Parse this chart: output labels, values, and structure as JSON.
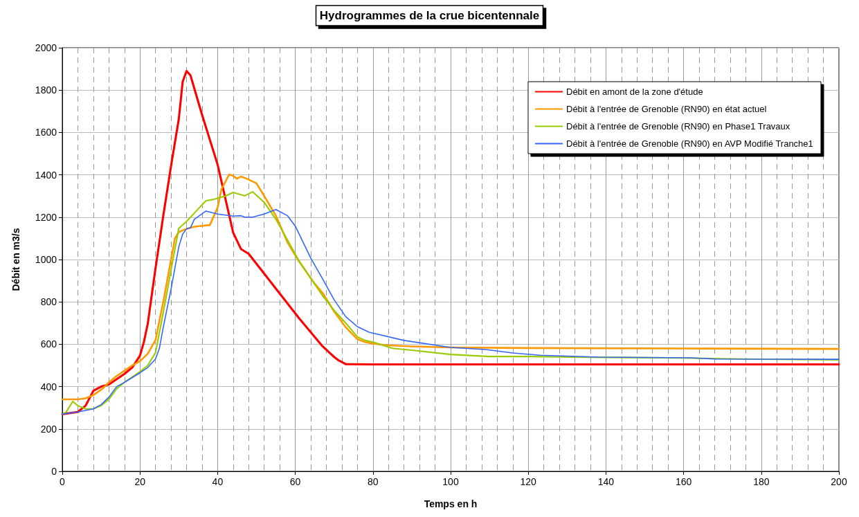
{
  "chart_data": {
    "type": "line",
    "title": "Hydrogrammes de la crue bicentennale",
    "xlabel": "Temps en h",
    "ylabel": "Débit en m3/s",
    "xlim": [
      0,
      200
    ],
    "xticks": [
      0,
      20,
      40,
      60,
      80,
      100,
      120,
      140,
      160,
      180,
      200
    ],
    "ylim": [
      0,
      2000
    ],
    "yticks": [
      0,
      200,
      400,
      600,
      800,
      1000,
      1200,
      1400,
      1600,
      1800,
      2000
    ],
    "grid": true,
    "legend": "top right",
    "marker": "none",
    "line_style": "solid",
    "series": [
      {
        "name": "Débit en amont de la zone d'étude",
        "color": "#ff0000",
        "x": [
          0,
          4,
          6,
          8,
          10,
          12,
          16,
          18,
          20,
          21,
          22,
          24,
          26,
          28,
          30,
          31,
          32,
          33,
          36,
          40,
          44,
          46,
          48,
          55,
          61,
          67,
          70,
          71,
          73,
          80,
          100,
          150,
          200
        ],
        "values": [
          270,
          280,
          310,
          380,
          400,
          410,
          460,
          490,
          546,
          610,
          696,
          958,
          1206,
          1441,
          1663,
          1840,
          1890,
          1870,
          1683,
          1448,
          1127,
          1050,
          1027,
          863,
          722,
          591,
          540,
          526,
          506,
          505,
          505,
          505,
          505
        ]
      },
      {
        "name": "Débit à l'entrée de Grenoble (RN90) en état actuel",
        "color": "#ff9900",
        "x": [
          0,
          4,
          6,
          8,
          10,
          12,
          14,
          16,
          18,
          20,
          22,
          24,
          26,
          28,
          29,
          30,
          32,
          34,
          38,
          40,
          41,
          43,
          44,
          45,
          46,
          48,
          50,
          52,
          55,
          58,
          61,
          65,
          67,
          70,
          73,
          76,
          78,
          80,
          84,
          90,
          100,
          120,
          160,
          200
        ],
        "values": [
          340,
          340,
          345,
          360,
          385,
          420,
          450,
          475,
          500,
          520,
          555,
          620,
          800,
          1000,
          1100,
          1130,
          1145,
          1155,
          1163,
          1245,
          1333,
          1402,
          1395,
          1382,
          1392,
          1378,
          1360,
          1300,
          1207,
          1081,
          990,
          886,
          843,
          755,
          680,
          624,
          610,
          603,
          595,
          590,
          585,
          582,
          580,
          578
        ]
      },
      {
        "name": "Débit à l'entrée de Grenoble (RN90) en Phase1 Travaux",
        "color": "#99cc00",
        "x": [
          0,
          1,
          2.7,
          4,
          6,
          8,
          10,
          12,
          14,
          16,
          20,
          22,
          24,
          26,
          28,
          30,
          32,
          35,
          37,
          39,
          42,
          44,
          47,
          49,
          52,
          55,
          58,
          61,
          64,
          67,
          70,
          73,
          76,
          78,
          80,
          85,
          90,
          100,
          110,
          120,
          140,
          160,
          175,
          200
        ],
        "values": [
          270,
          280,
          330,
          310,
          295,
          295,
          310,
          340,
          390,
          420,
          470,
          500,
          560,
          750,
          950,
          1147,
          1180,
          1239,
          1278,
          1284,
          1300,
          1317,
          1301,
          1320,
          1270,
          1190,
          1092,
          993,
          910,
          830,
          760,
          700,
          635,
          618,
          610,
          581,
          572,
          552,
          542,
          542,
          538,
          535,
          530,
          526
        ]
      },
      {
        "name": "Débit à l'entrée de Grenoble (RN90) en AVP Modifié Tranche1",
        "color": "#3366ff",
        "x": [
          0,
          4,
          8,
          10,
          12,
          14,
          16,
          20,
          22,
          24,
          25,
          26,
          28,
          30,
          31,
          32,
          33,
          34,
          37,
          40,
          44,
          46,
          47,
          49,
          52,
          55,
          58,
          60,
          64,
          67,
          70,
          73,
          76,
          79,
          88,
          100,
          109,
          116,
          123,
          138,
          162,
          168,
          200
        ],
        "values": [
          270,
          280,
          295,
          315,
          350,
          400,
          420,
          465,
          490,
          530,
          580,
          680,
          860,
          1060,
          1120,
          1145,
          1150,
          1190,
          1229,
          1215,
          1205,
          1207,
          1200,
          1200,
          1215,
          1236,
          1207,
          1158,
          1006,
          910,
          810,
          730,
          683,
          657,
          618,
          585,
          575,
          559,
          548,
          539,
          536,
          530,
          529
        ]
      }
    ]
  }
}
